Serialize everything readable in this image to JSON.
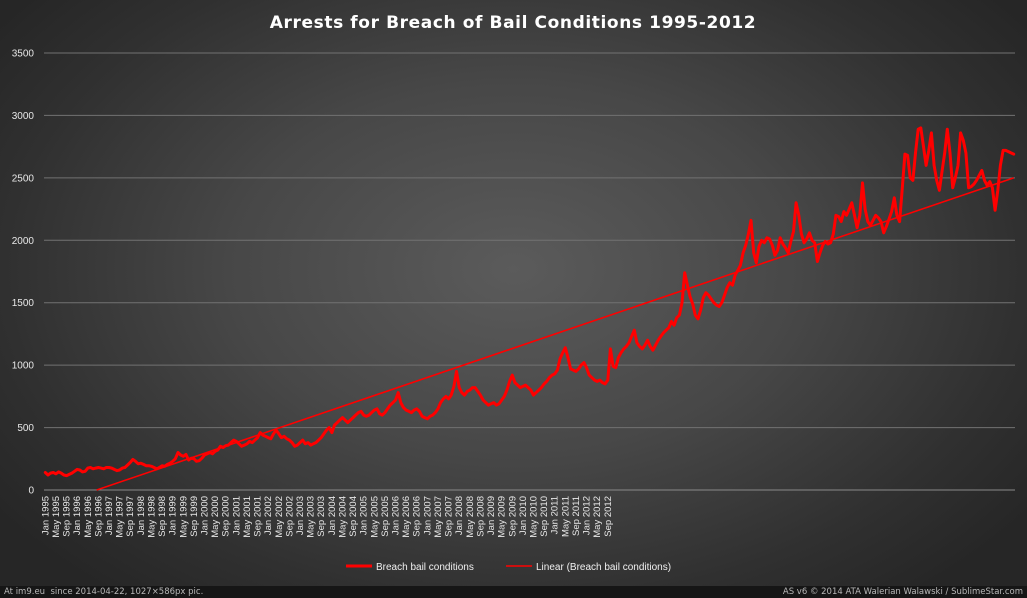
{
  "chart_data": {
    "type": "line",
    "title": "Arrests  for  Breach  of  Bail  Conditions  1995-2012",
    "xlabel": "",
    "ylabel": "",
    "ylim": [
      0,
      3500
    ],
    "yticks": [
      0,
      500,
      1000,
      1500,
      2000,
      2500,
      3000,
      3500
    ],
    "grid": true,
    "legend_position": "bottom",
    "x_tick_labels": [
      "Jan 1995",
      "May 1995",
      "Sep 1995",
      "Jan 1996",
      "May 1996",
      "Sep 1996",
      "Jan 1997",
      "May 1997",
      "Sep 1997",
      "Jan 1998",
      "May 1998",
      "Sep 1998",
      "Jan 1999",
      "May 1999",
      "Sep 1999",
      "Jan 2000",
      "May 2000",
      "Sep 2000",
      "Jan 2001",
      "May 2001",
      "Sep 2001",
      "Jan 2002",
      "May 2002",
      "Sep 2002",
      "Jan 2003",
      "May 2003",
      "Sep 2003",
      "Jan 2004",
      "May 2004",
      "Sep 2004",
      "Jan 2005",
      "May 2005",
      "Sep 2005",
      "Jan 2006",
      "May 2006",
      "Sep 2006",
      "Jan 2007",
      "May 2007",
      "Sep 2007",
      "Jan 2008",
      "May 2008",
      "Sep 2008",
      "Jan 2009",
      "May 2009",
      "Sep 2009",
      "Jan 2010",
      "May 2010",
      "Sep 2010",
      "Jan 2011",
      "May 2011",
      "Sep 2011",
      "Jan 2012",
      "May 2012",
      "Sep 2012"
    ],
    "series": [
      {
        "name": "Breach bail conditions",
        "color": "#ff0000",
        "x_start": "Jan 1995",
        "frequency": "monthly",
        "values": [
          140,
          120,
          135,
          140,
          130,
          145,
          135,
          120,
          115,
          125,
          135,
          150,
          165,
          160,
          145,
          150,
          175,
          180,
          170,
          175,
          180,
          175,
          170,
          180,
          180,
          175,
          165,
          155,
          160,
          175,
          180,
          200,
          220,
          245,
          230,
          210,
          215,
          205,
          195,
          195,
          190,
          180,
          170,
          180,
          195,
          190,
          205,
          215,
          230,
          250,
          300,
          280,
          270,
          285,
          240,
          255,
          250,
          230,
          235,
          255,
          280,
          290,
          300,
          290,
          310,
          320,
          350,
          340,
          355,
          360,
          380,
          400,
          390,
          370,
          350,
          360,
          370,
          390,
          380,
          400,
          420,
          460,
          440,
          430,
          420,
          410,
          450,
          480,
          450,
          420,
          430,
          410,
          400,
          380,
          350,
          360,
          380,
          400,
          370,
          380,
          360,
          370,
          380,
          400,
          420,
          450,
          480,
          500,
          460,
          520,
          540,
          560,
          580,
          560,
          540,
          560,
          580,
          600,
          620,
          630,
          600,
          590,
          600,
          620,
          640,
          650,
          610,
          600,
          620,
          650,
          680,
          700,
          720,
          780,
          700,
          660,
          640,
          630,
          620,
          640,
          650,
          630,
          590,
          580,
          570,
          590,
          600,
          620,
          650,
          700,
          730,
          750,
          730,
          760,
          830,
          950,
          820,
          780,
          760,
          790,
          800,
          820,
          820,
          790,
          760,
          720,
          700,
          680,
          690,
          700,
          680,
          690,
          720,
          750,
          800,
          870,
          920,
          860,
          840,
          820,
          830,
          840,
          820,
          800,
          760,
          780,
          800,
          820,
          850,
          870,
          900,
          920,
          930,
          960,
          1050,
          1100,
          1140,
          1060,
          970,
          960,
          950,
          970,
          1000,
          1020,
          980,
          920,
          900,
          880,
          870,
          880,
          860,
          850,
          880,
          1130,
          990,
          980,
          1060,
          1100,
          1130,
          1150,
          1180,
          1230,
          1280,
          1180,
          1150,
          1130,
          1160,
          1200,
          1150,
          1120,
          1160,
          1200,
          1230,
          1260,
          1280,
          1300,
          1350,
          1320,
          1380,
          1400,
          1500,
          1740,
          1640,
          1550,
          1490,
          1400,
          1370,
          1440,
          1540,
          1580,
          1560,
          1530,
          1500,
          1480,
          1470,
          1500,
          1560,
          1620,
          1660,
          1640,
          1720,
          1760,
          1800,
          1900,
          1960,
          2050,
          2160,
          1900,
          1820,
          1950,
          2000,
          1980,
          2020,
          2010,
          1960,
          1880,
          1920,
          2020,
          1970,
          1940,
          1900,
          1990,
          2070,
          2300,
          2200,
          2050,
          1980,
          2010,
          2060,
          2000,
          1980,
          1830,
          1900,
          1960,
          1990,
          1970,
          1980,
          2050,
          2200,
          2190,
          2150,
          2230,
          2200,
          2250,
          2300,
          2200,
          2100,
          2200,
          2460,
          2250,
          2150,
          2120,
          2160,
          2200,
          2180,
          2150,
          2060,
          2110,
          2170,
          2230,
          2340,
          2200,
          2150,
          2410,
          2690,
          2680,
          2500,
          2480,
          2700,
          2890,
          2900,
          2750,
          2600,
          2720,
          2860,
          2600,
          2480,
          2400,
          2550,
          2700,
          2890,
          2700,
          2420,
          2500,
          2600,
          2860,
          2800,
          2700,
          2420,
          2430,
          2450,
          2480,
          2520,
          2560,
          2480,
          2440,
          2470,
          2420,
          2240,
          2400,
          2600,
          2720,
          2720,
          2710,
          2700,
          2690
        ]
      },
      {
        "name": "Linear (Breach bail conditions)",
        "color": "#ff0000",
        "start_value": -140,
        "end_value": 2500
      }
    ]
  },
  "footer": {
    "left": "At im9.eu  since 2014-04-22, 1027×586px pic.",
    "right": "AS v6 © 2014 ATA Walerian Walawski / SublimeStar.com"
  }
}
